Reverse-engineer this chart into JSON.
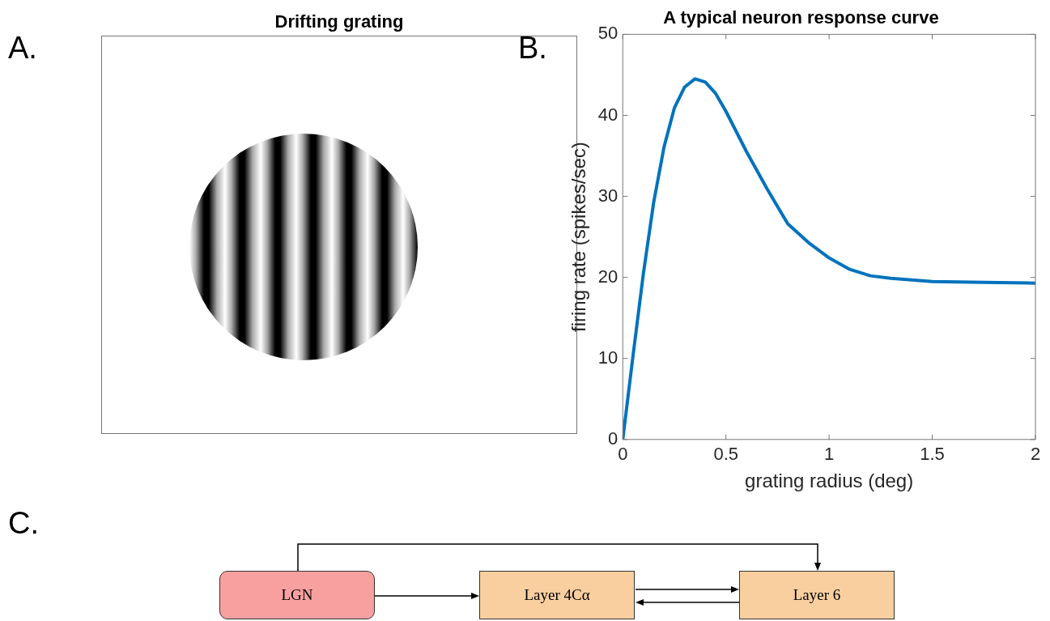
{
  "chart_data": [
    {
      "type": "other",
      "title": "Drifting grating",
      "annotations": [
        "A."
      ]
    },
    {
      "type": "line",
      "title": "A typical neuron response curve",
      "xlabel": "grating radius (deg)",
      "ylabel": "firing rate (spikes/sec)",
      "annotations": [
        "B."
      ],
      "x": [
        0,
        0.05,
        0.1,
        0.15,
        0.2,
        0.25,
        0.3,
        0.35,
        0.4,
        0.45,
        0.5,
        0.6,
        0.7,
        0.8,
        0.9,
        1.0,
        1.1,
        1.2,
        1.3,
        1.4,
        1.5,
        1.75,
        2.0
      ],
      "series": [
        {
          "color": "#0072bd",
          "values": [
            0,
            10.4,
            20.5,
            29.3,
            36.1,
            40.9,
            43.5,
            44.5,
            44.1,
            42.7,
            40.5,
            35.5,
            30.9,
            26.6,
            24.3,
            22.4,
            21.0,
            20.2,
            19.9,
            19.7,
            19.5,
            19.4,
            19.3
          ]
        }
      ],
      "xlim": [
        0,
        2
      ],
      "xticks": [
        0,
        0.5,
        1,
        1.5,
        2
      ],
      "ylim": [
        0,
        50
      ],
      "yticks": [
        0,
        10,
        20,
        30,
        40,
        50
      ],
      "grid": false,
      "legend": false,
      "marker": "none",
      "line_style": "solid"
    },
    {
      "type": "other",
      "annotations": [
        "C.",
        "LGN",
        "Layer 4Cα",
        "Layer 6"
      ]
    }
  ]
}
